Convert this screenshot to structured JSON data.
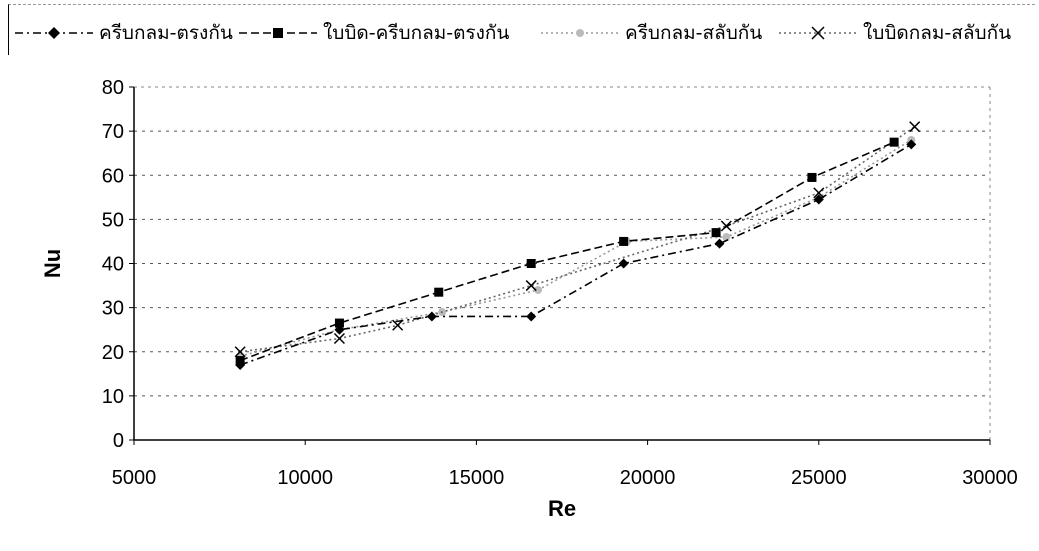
{
  "chart_data": {
    "type": "line",
    "title": "",
    "xlabel": "Re",
    "ylabel": "Nu",
    "xlim": [
      5000,
      30000
    ],
    "ylim": [
      0,
      80
    ],
    "xticks": [
      "5000",
      "10000",
      "15000",
      "20000",
      "25000",
      "30000"
    ],
    "yticks": [
      "0",
      "10",
      "20",
      "30",
      "40",
      "50",
      "60",
      "70",
      "80"
    ],
    "grid": "horizontal",
    "legend_position": "top",
    "series": [
      {
        "name": "ครีบกลม-ตรงกัน",
        "marker": "diamond",
        "line": "dash-dot",
        "color": "#000000",
        "x": [
          8100,
          11000,
          13700,
          16600,
          19300,
          22100,
          25000,
          27700
        ],
        "y": [
          17,
          25,
          28,
          28,
          40,
          44.5,
          54.5,
          67
        ]
      },
      {
        "name": "ใบบิด-ครีบกลม-ตรงกัน",
        "marker": "square",
        "line": "dashed",
        "color": "#000000",
        "x": [
          8100,
          11000,
          13900,
          16600,
          19300,
          22000,
          24800,
          27200
        ],
        "y": [
          18,
          26.5,
          33.5,
          40,
          45,
          47,
          59.5,
          67.5
        ]
      },
      {
        "name": "ครีบกลม-สลับกัน",
        "marker": "circle",
        "line": "dotted",
        "color": "#999999",
        "x": [
          8100,
          11000,
          14000,
          16800,
          19400,
          22300,
          25000,
          27700
        ],
        "y": [
          19,
          25,
          29,
          34,
          45,
          46,
          55,
          68
        ]
      },
      {
        "name": "ใบบิดกลม-สลับกัน",
        "marker": "x",
        "line": "dotted",
        "color": "#666666",
        "x": [
          8100,
          11000,
          12700,
          16600,
          22300,
          25000,
          27800
        ],
        "y": [
          20,
          23,
          26,
          35,
          48.5,
          56,
          71
        ]
      }
    ]
  }
}
